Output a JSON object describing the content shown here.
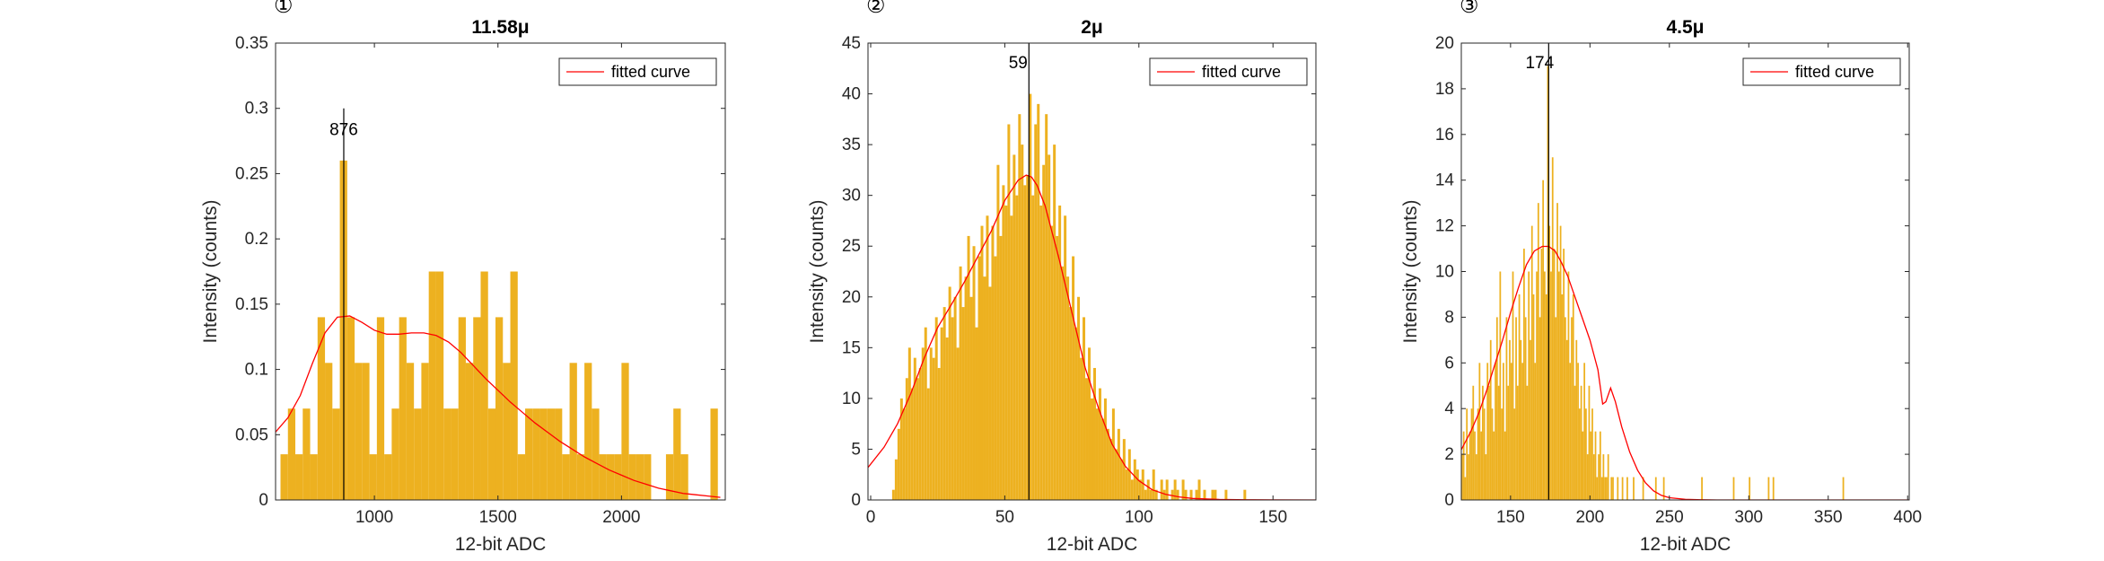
{
  "chart_data": [
    {
      "type": "bar",
      "panel_number": "①",
      "title": "11.58μ",
      "xlabel": "12-bit ADC",
      "ylabel": "Intensity (counts)",
      "xlim": [
        600,
        2420
      ],
      "ylim": [
        0,
        0.35
      ],
      "xticks": [
        1000,
        1500,
        2000
      ],
      "yticks": [
        0,
        0.05,
        0.1,
        0.15,
        0.2,
        0.25,
        0.3,
        0.35
      ],
      "ytick_labels": [
        "0",
        "0.05",
        "0.1",
        "0.15",
        "0.2",
        "0.25",
        "0.3",
        "0.35"
      ],
      "bar_color": "#EDB120",
      "fit_color": "#FF0000",
      "legend": "fitted curve",
      "legend_position": "top-right",
      "peak": {
        "x": 876,
        "label": "876",
        "line_top": 0.3
      },
      "bins": {
        "start": 620,
        "width": 30,
        "values": [
          0.035,
          0.07,
          0.035,
          0.07,
          0.035,
          0.14,
          0.105,
          0.07,
          0.26,
          0.14,
          0.105,
          0.105,
          0.035,
          0.14,
          0.035,
          0.07,
          0.14,
          0.105,
          0.07,
          0.105,
          0.175,
          0.175,
          0.07,
          0.07,
          0.14,
          0.105,
          0.14,
          0.175,
          0.07,
          0.14,
          0.105,
          0.175,
          0.035,
          0.07,
          0.07,
          0.07,
          0.07,
          0.07,
          0.035,
          0.105,
          0.035,
          0.105,
          0.07,
          0.035,
          0.035,
          0.035,
          0.105,
          0.035,
          0.035,
          0.035,
          0.0,
          0.0,
          0.035,
          0.07,
          0.035,
          0.0,
          0.0,
          0.0,
          0.07,
          0.0,
          0.0
        ]
      },
      "fit": {
        "x": [
          600,
          650,
          700,
          750,
          800,
          850,
          900,
          950,
          1000,
          1050,
          1100,
          1150,
          1200,
          1250,
          1300,
          1350,
          1400,
          1450,
          1500,
          1550,
          1600,
          1650,
          1700,
          1750,
          1800,
          1850,
          1900,
          1950,
          2000,
          2050,
          2100,
          2150,
          2200,
          2250,
          2300,
          2350,
          2400
        ],
        "y": [
          0.052,
          0.063,
          0.08,
          0.105,
          0.128,
          0.14,
          0.141,
          0.136,
          0.13,
          0.127,
          0.127,
          0.128,
          0.128,
          0.126,
          0.121,
          0.113,
          0.103,
          0.093,
          0.084,
          0.075,
          0.067,
          0.059,
          0.052,
          0.045,
          0.039,
          0.033,
          0.028,
          0.023,
          0.019,
          0.015,
          0.012,
          0.009,
          0.007,
          0.005,
          0.004,
          0.003,
          0.002
        ]
      }
    },
    {
      "type": "bar",
      "panel_number": "②",
      "title": "2μ",
      "xlabel": "12-bit ADC",
      "ylabel": "Intensity (counts)",
      "xlim": [
        -1,
        166
      ],
      "ylim": [
        0,
        45
      ],
      "xticks": [
        0,
        50,
        100,
        150
      ],
      "yticks": [
        0,
        5,
        10,
        15,
        20,
        25,
        30,
        35,
        40,
        45
      ],
      "ytick_labels": [
        "0",
        "5",
        "10",
        "15",
        "20",
        "25",
        "30",
        "35",
        "40",
        "45"
      ],
      "bar_color": "#EDB120",
      "fit_color": "#FF0000",
      "legend": "fitted curve",
      "legend_position": "top-right",
      "peak": {
        "x": 59,
        "label": "59",
        "line_top": 45
      },
      "bins": {
        "start": 8,
        "width": 1,
        "values": [
          1,
          4,
          7,
          10,
          9,
          12,
          15,
          11,
          14,
          12,
          13,
          15,
          17,
          11,
          15,
          14,
          18,
          13,
          17,
          19,
          16,
          21,
          18,
          20,
          15,
          23,
          19,
          22,
          26,
          20,
          25,
          17,
          24,
          27,
          22,
          28,
          21,
          27,
          24,
          33,
          26,
          31,
          29,
          37,
          28,
          34,
          30,
          38,
          35,
          31,
          32,
          40,
          30,
          37,
          39,
          29,
          33,
          38,
          34,
          27,
          35,
          26,
          29,
          23,
          28,
          22,
          19,
          24,
          17,
          20,
          14,
          18,
          12,
          15,
          10,
          13,
          9,
          11,
          8,
          10,
          7,
          6,
          9,
          5,
          7,
          4,
          6,
          3,
          5,
          2,
          4,
          3,
          2,
          3,
          1,
          2,
          1,
          3,
          1,
          0,
          2,
          1,
          2,
          0,
          1,
          2,
          1,
          0,
          2,
          1,
          0,
          1,
          0,
          1,
          2,
          0,
          1,
          0,
          0,
          1,
          1,
          0,
          0,
          0,
          1,
          0,
          0,
          0,
          0,
          0,
          0,
          1
        ]
      },
      "fit": {
        "x": [
          -1,
          5,
          10,
          15,
          20,
          25,
          30,
          35,
          40,
          45,
          50,
          55,
          58,
          60,
          62,
          65,
          70,
          75,
          80,
          85,
          90,
          95,
          100,
          105,
          110,
          115,
          120,
          130,
          140,
          150,
          166
        ],
        "y": [
          3.2,
          5.2,
          7.5,
          10.5,
          14,
          17,
          19.2,
          21.5,
          24,
          26.5,
          29.5,
          31.5,
          32,
          31.8,
          31,
          29,
          24,
          18.5,
          13,
          9,
          5.5,
          3.3,
          1.9,
          1.0,
          0.55,
          0.3,
          0.15,
          0.05,
          0.02,
          0.01,
          0.0
        ]
      }
    },
    {
      "type": "bar",
      "panel_number": "③",
      "title": "4.5μ",
      "xlabel": "12-bit ADC",
      "ylabel": "Intensity (counts)",
      "xlim": [
        119,
        401
      ],
      "ylim": [
        0,
        20
      ],
      "xticks": [
        150,
        200,
        250,
        300,
        350,
        400
      ],
      "yticks": [
        0,
        2,
        4,
        6,
        8,
        10,
        12,
        14,
        16,
        18,
        20
      ],
      "ytick_labels": [
        "0",
        "2",
        "4",
        "6",
        "8",
        "10",
        "12",
        "14",
        "16",
        "18",
        "20"
      ],
      "bar_color": "#EDB120",
      "fit_color": "#FF0000",
      "legend": "fitted curve",
      "legend_position": "top-right",
      "peak": {
        "x": 174,
        "label": "174",
        "line_top": 20
      },
      "bins": {
        "start": 119,
        "width": 1,
        "values": [
          2,
          3,
          1,
          4,
          2,
          3,
          4,
          5,
          3,
          2,
          4,
          6,
          3,
          5,
          4,
          2,
          6,
          5,
          7,
          4,
          3,
          6,
          8,
          5,
          10,
          4,
          6,
          3,
          8,
          5,
          7,
          6,
          10,
          4,
          8,
          5,
          9,
          7,
          6,
          11,
          8,
          5,
          10,
          7,
          12,
          9,
          6,
          10,
          13,
          8,
          11,
          14,
          10,
          9,
          19,
          12,
          10,
          15,
          11,
          8,
          13,
          10,
          12,
          9,
          11,
          8,
          7,
          10,
          6,
          8,
          9,
          5,
          7,
          6,
          4,
          5,
          3,
          6,
          4,
          2,
          5,
          3,
          4,
          2,
          3,
          1,
          2,
          3,
          1,
          2,
          1,
          1,
          2,
          0,
          1,
          1,
          0,
          0,
          1,
          0,
          0,
          1,
          0,
          0,
          1,
          0,
          0,
          0,
          1,
          0,
          0,
          0,
          0,
          0,
          1,
          0,
          0,
          0,
          0,
          0,
          0,
          0,
          1,
          0,
          0,
          0,
          0,
          1,
          0,
          0,
          0,
          0,
          0,
          0,
          0,
          0,
          0,
          0,
          0,
          0,
          0,
          0,
          0,
          0,
          0,
          0,
          0,
          0,
          0,
          0,
          0,
          1,
          0,
          0,
          0,
          0,
          0,
          0,
          0,
          0,
          0,
          0,
          0,
          0,
          0,
          0,
          0,
          0,
          0,
          0,
          0,
          1,
          0,
          0,
          0,
          0,
          0,
          0,
          0,
          0,
          0,
          1,
          0,
          0,
          0,
          0,
          0,
          0,
          0,
          0,
          0,
          0,
          0,
          1,
          0,
          0,
          1,
          0,
          0,
          0,
          0,
          0,
          0,
          0,
          0,
          0,
          0,
          0,
          0,
          0,
          0,
          0,
          0,
          0,
          0,
          0,
          0,
          0,
          0,
          0,
          0,
          0,
          0,
          0,
          0,
          0,
          0,
          0,
          0,
          0,
          0,
          0,
          0,
          0,
          0,
          0,
          0,
          0,
          0,
          0,
          1
        ]
      },
      "fit": {
        "x": [
          119,
          125,
          130,
          135,
          140,
          145,
          150,
          155,
          160,
          165,
          170,
          174,
          178,
          182,
          186,
          190,
          195,
          200,
          205,
          208,
          210,
          213,
          216,
          220,
          225,
          230,
          235,
          240,
          245,
          250,
          260,
          270,
          280,
          300,
          330,
          360,
          401
        ],
        "y": [
          2.2,
          3,
          3.8,
          4.8,
          5.9,
          7,
          8.2,
          9.3,
          10.3,
          10.9,
          11.1,
          11.1,
          10.9,
          10.4,
          9.8,
          9,
          8,
          7,
          5.7,
          4.2,
          4.3,
          4.9,
          4.3,
          3.2,
          2.1,
          1.3,
          0.75,
          0.4,
          0.2,
          0.1,
          0.03,
          0.01,
          0,
          0,
          0,
          0,
          0
        ]
      }
    }
  ]
}
